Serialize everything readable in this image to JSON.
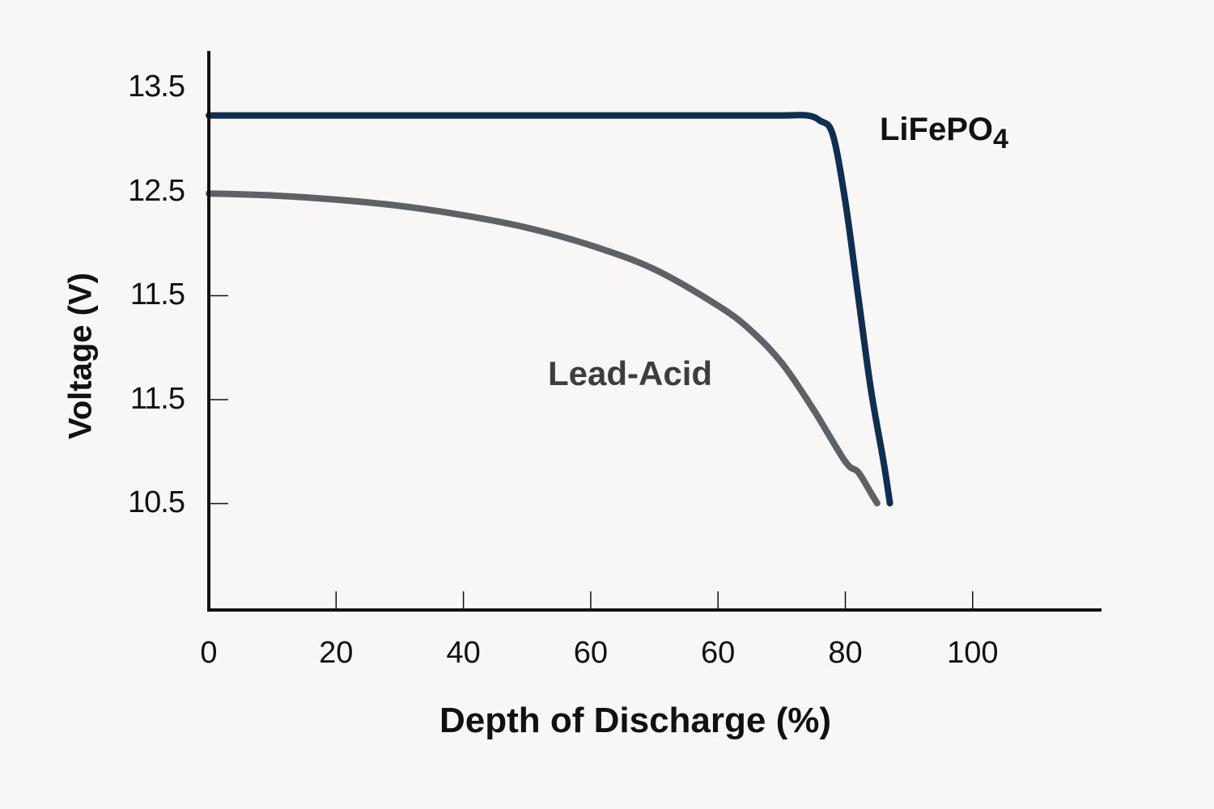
{
  "chart_data": {
    "type": "line",
    "title": "",
    "xlabel": "Depth of Discharge (%)",
    "ylabel": "Voltage (V)",
    "x_tick_labels": [
      "0",
      "20",
      "40",
      "60",
      "60",
      "80",
      "100"
    ],
    "y_tick_labels": [
      "13.5",
      "12.5",
      "11.5",
      "11.5",
      "10.5"
    ],
    "xlim": [
      0,
      140
    ],
    "ylim": [
      9.5,
      13.9
    ],
    "grid": false,
    "legend": "inline labels",
    "series": [
      {
        "name": "LiFePO4",
        "name_base": "LiFePO",
        "name_sub": "4",
        "color": "#0f2f52",
        "x": [
          0,
          20,
          40,
          60,
          80,
          90,
          94,
          96,
          98,
          100,
          102,
          104,
          106,
          107
        ],
        "y": [
          13.23,
          13.23,
          13.23,
          13.23,
          13.23,
          13.23,
          13.23,
          13.18,
          13.05,
          12.4,
          11.5,
          10.6,
          9.9,
          9.5
        ]
      },
      {
        "name": "Lead-Acid",
        "color": "#5e6166",
        "x": [
          0,
          10,
          20,
          30,
          40,
          50,
          60,
          70,
          80,
          85,
          90,
          95,
          100,
          102,
          104,
          105
        ],
        "y": [
          12.48,
          12.46,
          12.42,
          12.36,
          12.27,
          12.15,
          11.98,
          11.75,
          11.4,
          11.17,
          10.85,
          10.4,
          9.9,
          9.8,
          9.6,
          9.5
        ]
      }
    ]
  }
}
